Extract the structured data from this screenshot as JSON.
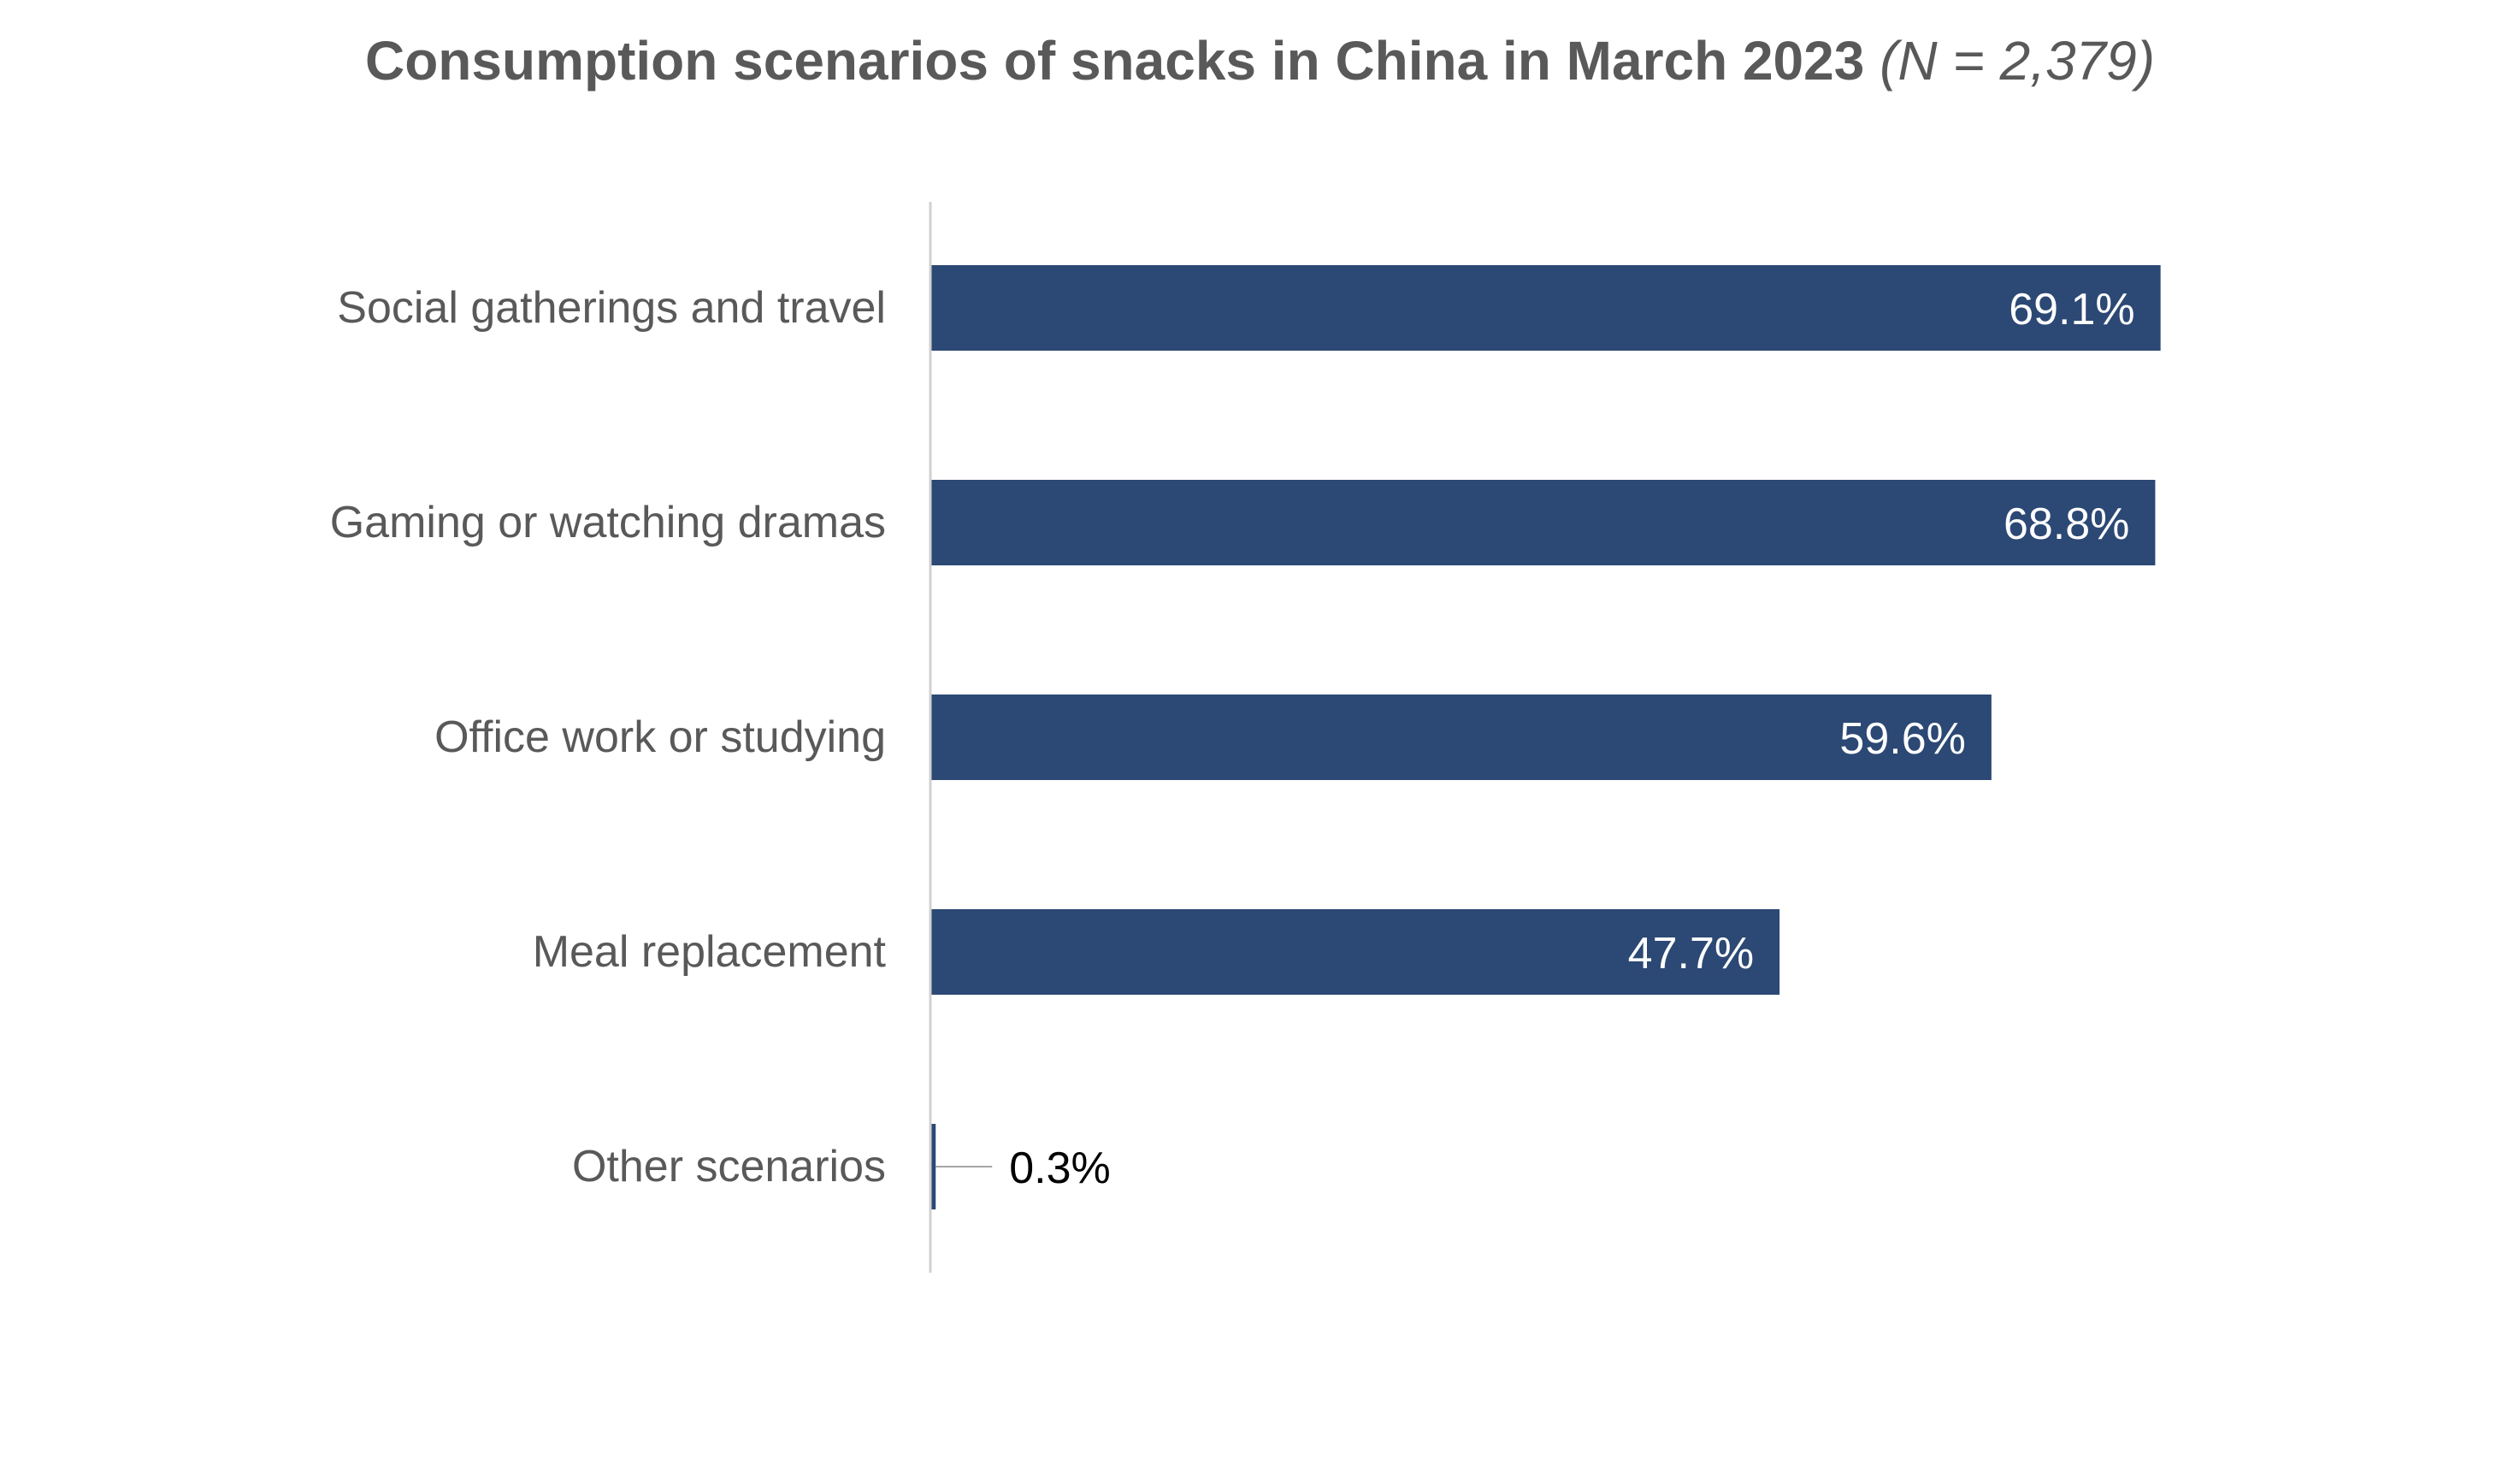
{
  "chart_data": {
    "type": "bar",
    "orientation": "horizontal",
    "title": "Consumption scenarios of snacks in China in March 2023",
    "subtitle": "(N = 2,379)",
    "categories": [
      "Social gatherings and travel",
      "Gaming or watching dramas",
      "Office work or studying",
      "Meal replacement",
      "Other scenarios"
    ],
    "values": [
      69.1,
      68.8,
      59.6,
      47.7,
      0.3
    ],
    "data_labels": [
      "69.1%",
      "68.8%",
      "59.6%",
      "47.7%",
      "0.3%"
    ],
    "xlabel": "",
    "ylabel": "",
    "xlim": [
      0,
      75
    ],
    "grid": false,
    "legend": "none",
    "bar_color": "#2c4874"
  }
}
